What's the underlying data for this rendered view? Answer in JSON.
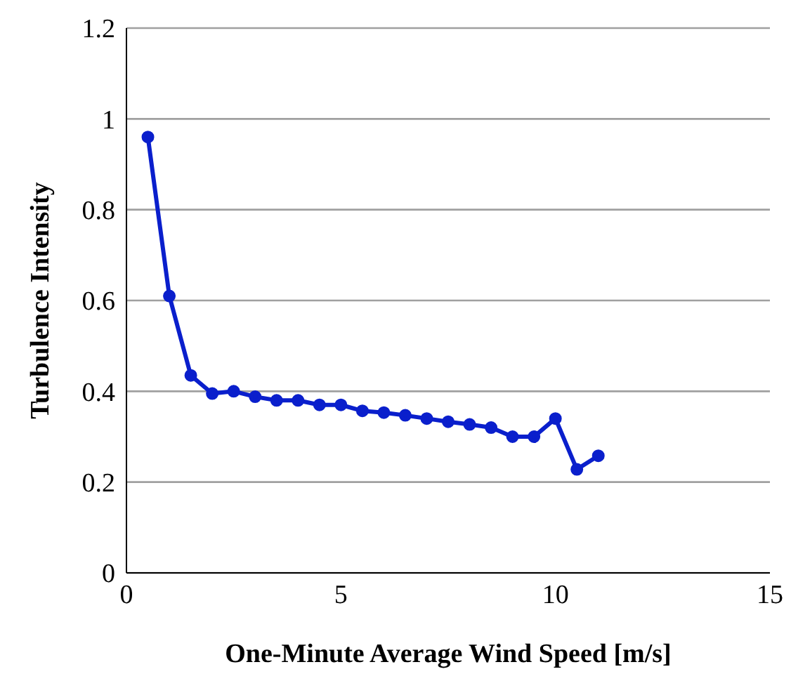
{
  "chart_data": {
    "type": "line",
    "xlabel": "One-Minute  Average Wind  Speed [m/s]",
    "ylabel": "Turbulence  Intensity",
    "x": [
      0.5,
      1,
      1.5,
      2,
      2.5,
      3,
      3.5,
      4,
      4.5,
      5,
      5.5,
      6,
      6.5,
      7,
      7.5,
      8,
      8.5,
      9,
      9.5,
      10,
      10.5,
      11
    ],
    "series": [
      {
        "color": "#0a1fcc",
        "values": [
          0.96,
          0.61,
          0.435,
          0.395,
          0.4,
          0.388,
          0.38,
          0.38,
          0.37,
          0.37,
          0.357,
          0.353,
          0.347,
          0.34,
          0.333,
          0.327,
          0.32,
          0.3,
          0.3,
          0.34,
          0.228,
          0.258
        ]
      }
    ],
    "xlim": [
      0,
      15
    ],
    "xticks": [
      0,
      5,
      10,
      15
    ],
    "ylim": [
      0,
      1.2
    ],
    "yticks": [
      0,
      0.2,
      0.4,
      0.6,
      0.8,
      1,
      1.2
    ],
    "grid": "y",
    "marker": "circle",
    "line_style": "solid",
    "legend": false
  }
}
